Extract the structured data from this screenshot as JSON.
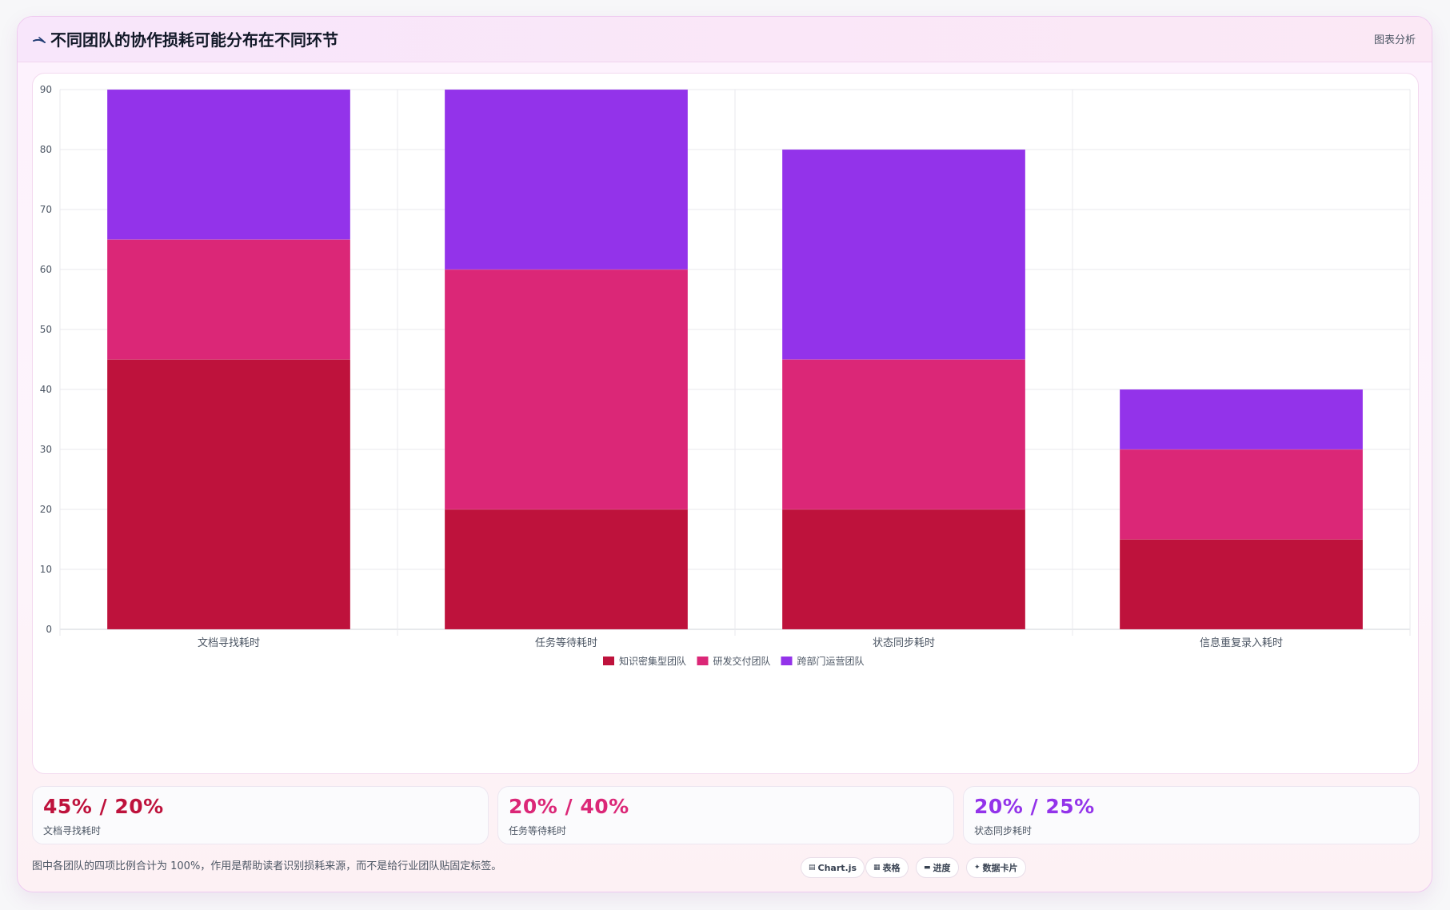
{
  "header": {
    "title": "不同团队的协作损耗可能分布在不同环节",
    "tag": "图表分析"
  },
  "chart_data": {
    "type": "bar",
    "stacked": true,
    "categories": [
      "文档寻找耗时",
      "任务等待耗时",
      "状态同步耗时",
      "信息重复录入耗时"
    ],
    "series": [
      {
        "name": "知识密集型团队",
        "color": "#be123c",
        "values": [
          45,
          20,
          20,
          15
        ]
      },
      {
        "name": "研发交付团队",
        "color": "#db2777",
        "values": [
          20,
          40,
          25,
          15
        ]
      },
      {
        "name": "跨部门运营团队",
        "color": "#9333ea",
        "values": [
          25,
          30,
          35,
          10
        ]
      }
    ],
    "ylim": [
      0,
      90
    ],
    "yticks": [
      0,
      10,
      20,
      30,
      40,
      50,
      60,
      70,
      80,
      90
    ],
    "grid": true,
    "legend": "bottom"
  },
  "stats": [
    {
      "value": "45% / 20%",
      "label": "文档寻找耗时",
      "color": "#be123c"
    },
    {
      "value": "20% / 40%",
      "label": "任务等待耗时",
      "color": "#db2777"
    },
    {
      "value": "20% / 25%",
      "label": "状态同步耗时",
      "color": "#9333ea"
    }
  ],
  "footnote": "图中各团队的四项比例合计为 100%，作用是帮助读者识别损耗来源，而不是给行业团队贴固定标签。",
  "pills": [
    {
      "icon": "chart-icon",
      "glyph": "▤",
      "label": "Chart.js"
    },
    {
      "icon": "table-icon",
      "glyph": "▦",
      "label": "表格"
    },
    {
      "icon": "progress-icon",
      "glyph": "▬",
      "label": "进度"
    },
    {
      "icon": "sparkle-icon",
      "glyph": "✦",
      "label": "数据卡片"
    }
  ]
}
